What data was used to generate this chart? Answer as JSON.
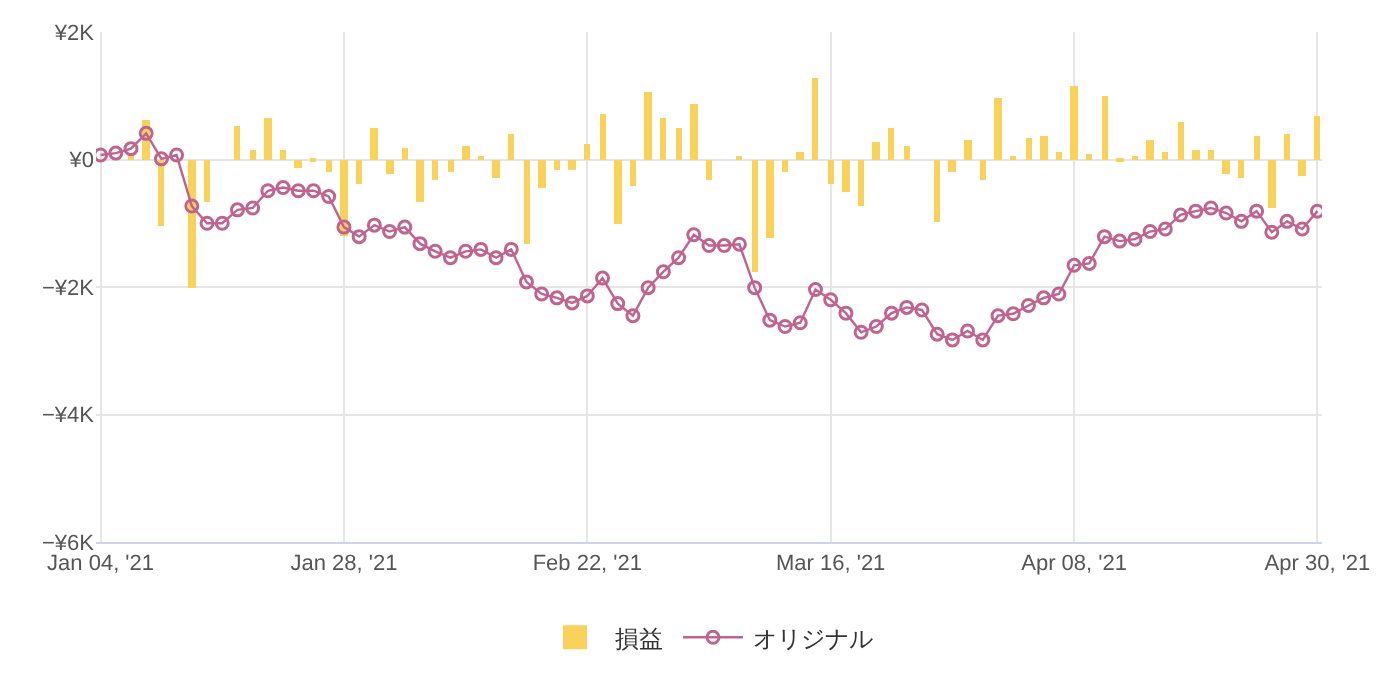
{
  "chart_data": {
    "type": "bar",
    "categories": [
      "Jan 04, '21",
      null,
      null,
      null,
      null,
      null,
      null,
      null,
      null,
      null,
      null,
      null,
      null,
      null,
      null,
      null,
      "Jan 28, '21",
      null,
      null,
      null,
      null,
      null,
      null,
      null,
      null,
      null,
      null,
      null,
      null,
      null,
      null,
      null,
      "Feb 22, '21",
      null,
      null,
      null,
      null,
      null,
      null,
      null,
      null,
      null,
      null,
      null,
      null,
      null,
      null,
      null,
      "Mar 16, '21",
      null,
      null,
      null,
      null,
      null,
      null,
      null,
      null,
      null,
      null,
      null,
      null,
      null,
      null,
      null,
      "Apr 08, '21",
      null,
      null,
      null,
      null,
      null,
      null,
      null,
      null,
      null,
      null,
      null,
      null,
      null,
      null,
      null,
      "Apr 30, '21"
    ],
    "series": [
      {
        "name": "損益",
        "color": "#f9d25b",
        "values": [
          0,
          0,
          80,
          630,
          -1050,
          0,
          -2000,
          -660,
          0,
          530,
          140,
          650,
          140,
          -130,
          -40,
          -200,
          -1210,
          -370,
          490,
          -230,
          180,
          -660,
          -320,
          -200,
          200,
          50,
          -280,
          400,
          -1310,
          -440,
          -170,
          -170,
          250,
          720,
          -1010,
          -410,
          1050,
          650,
          490,
          870,
          -320,
          0,
          70,
          -1760,
          -1230,
          -200,
          120,
          1280,
          -390,
          -510,
          -730,
          280,
          480,
          210,
          0,
          -970,
          -200,
          310,
          -320,
          970,
          50,
          330,
          370,
          120,
          1160,
          80,
          1000,
          -50,
          30,
          310,
          120,
          590,
          150,
          150,
          -230,
          -290,
          370,
          -770,
          400,
          -260,
          680
        ]
      },
      {
        "name": "オリジナル",
        "type": "line",
        "color": "#c0648f",
        "marker": "circle",
        "values": [
          70,
          100,
          170,
          410,
          10,
          70,
          -730,
          -1000,
          -1000,
          -790,
          -760,
          -490,
          -440,
          -490,
          -490,
          -580,
          -1060,
          -1210,
          -1030,
          -1130,
          -1060,
          -1320,
          -1440,
          -1540,
          -1440,
          -1410,
          -1540,
          -1410,
          -1920,
          -2110,
          -2170,
          -2250,
          -2140,
          -1860,
          -2260,
          -2450,
          -2010,
          -1760,
          -1540,
          -1180,
          -1350,
          -1350,
          -1330,
          -2010,
          -2520,
          -2620,
          -2560,
          -2040,
          -2200,
          -2410,
          -2710,
          -2620,
          -2410,
          -2320,
          -2360,
          -2740,
          -2830,
          -2690,
          -2830,
          -2450,
          -2420,
          -2290,
          -2170,
          -2110,
          -1660,
          -1630,
          -1210,
          -1280,
          -1250,
          -1130,
          -1090,
          -870,
          -810,
          -760,
          -840,
          -970,
          -810,
          -1140,
          -970,
          -1090,
          -810
        ]
      }
    ],
    "ylim": [
      -6000,
      2000
    ],
    "yticks": [
      {
        "value": 2000,
        "label": "¥2K"
      },
      {
        "value": 0,
        "label": "¥0"
      },
      {
        "value": -2000,
        "label": "−¥2K"
      },
      {
        "value": -4000,
        "label": "−¥4K"
      },
      {
        "value": -6000,
        "label": "−¥6K"
      }
    ],
    "grid": true,
    "legend": "bottom"
  }
}
